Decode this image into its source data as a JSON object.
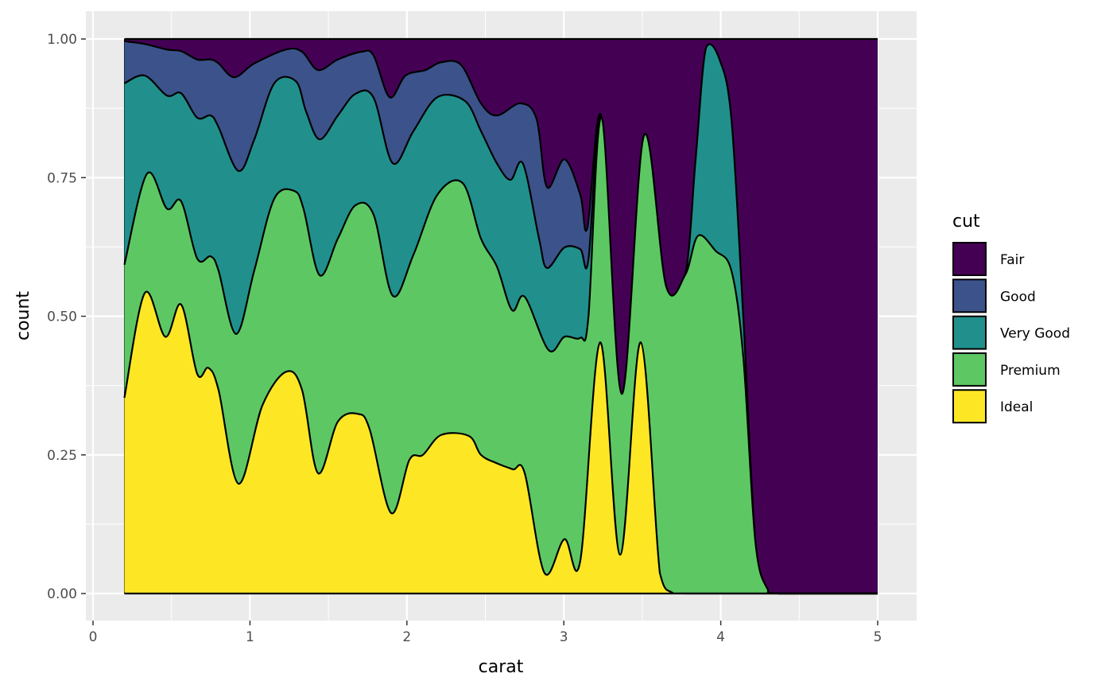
{
  "chart_data": {
    "type": "area",
    "stacking": "fill",
    "xlabel": "carat",
    "ylabel": "count",
    "xlim": [
      -0.05,
      5.2
    ],
    "ylim": [
      -0.05,
      1.05
    ],
    "x_ticks": [
      "0",
      "1",
      "2",
      "3",
      "4",
      "5"
    ],
    "y_ticks": [
      "0.00",
      "0.25",
      "0.50",
      "0.75",
      "1.00"
    ],
    "grid": true,
    "legend": {
      "title": "cut",
      "position": "right"
    },
    "x_range": [
      0.2,
      5.0
    ],
    "series": [
      {
        "name": "Fair",
        "color": "#440154",
        "upper": [
          [
            0.2,
            1
          ],
          [
            5,
            1
          ]
        ]
      },
      {
        "name": "Good",
        "color": "#3B528B",
        "upper": [
          [
            0.2,
            0.996
          ],
          [
            0.33,
            0.991
          ],
          [
            0.471,
            0.981
          ],
          [
            0.562,
            0.978
          ],
          [
            0.664,
            0.963
          ],
          [
            0.75,
            0.963
          ],
          [
            0.8,
            0.956
          ],
          [
            0.9,
            0.931
          ],
          [
            1.028,
            0.956
          ],
          [
            1.231,
            0.981
          ],
          [
            1.332,
            0.977
          ],
          [
            1.434,
            0.944
          ],
          [
            1.56,
            0.963
          ],
          [
            1.712,
            0.977
          ],
          [
            1.788,
            0.97
          ],
          [
            1.89,
            0.895
          ],
          [
            1.991,
            0.934
          ],
          [
            2.118,
            0.944
          ],
          [
            2.219,
            0.958
          ],
          [
            2.346,
            0.953
          ],
          [
            2.472,
            0.884
          ],
          [
            2.573,
            0.862
          ],
          [
            2.725,
            0.884
          ],
          [
            2.827,
            0.855
          ],
          [
            2.893,
            0.733
          ],
          [
            3.004,
            0.783
          ],
          [
            3.105,
            0.719
          ],
          [
            3.15,
            0.659
          ],
          [
            3.242,
            0.858
          ],
          [
            3.369,
            0.36
          ],
          [
            3.511,
            0.826
          ],
          [
            3.652,
            0.554
          ],
          [
            3.774,
            0.575
          ],
          [
            3.84,
            0.783
          ],
          [
            3.906,
            0.984
          ],
          [
            3.992,
            0.963
          ],
          [
            4.068,
            0.855
          ],
          [
            4.144,
            0.496
          ],
          [
            4.22,
            0.095
          ],
          [
            4.296,
            0.009
          ],
          [
            4.372,
            0
          ],
          [
            5,
            0
          ]
        ]
      },
      {
        "name": "Very Good",
        "color": "#21908C",
        "upper": [
          [
            0.2,
            0.92
          ],
          [
            0.33,
            0.934
          ],
          [
            0.471,
            0.898
          ],
          [
            0.562,
            0.902
          ],
          [
            0.664,
            0.858
          ],
          [
            0.75,
            0.862
          ],
          [
            0.8,
            0.841
          ],
          [
            0.927,
            0.762
          ],
          [
            1.028,
            0.819
          ],
          [
            1.155,
            0.92
          ],
          [
            1.292,
            0.924
          ],
          [
            1.358,
            0.869
          ],
          [
            1.444,
            0.819
          ],
          [
            1.56,
            0.862
          ],
          [
            1.672,
            0.901
          ],
          [
            1.788,
            0.894
          ],
          [
            1.91,
            0.776
          ],
          [
            2.042,
            0.834
          ],
          [
            2.194,
            0.895
          ],
          [
            2.371,
            0.888
          ],
          [
            2.472,
            0.834
          ],
          [
            2.573,
            0.776
          ],
          [
            2.66,
            0.746
          ],
          [
            2.74,
            0.775
          ],
          [
            2.842,
            0.64
          ],
          [
            2.893,
            0.587
          ],
          [
            3.004,
            0.624
          ],
          [
            3.105,
            0.621
          ],
          [
            3.156,
            0.6
          ],
          [
            3.242,
            0.858
          ],
          [
            3.369,
            0.36
          ],
          [
            3.511,
            0.826
          ],
          [
            3.652,
            0.554
          ],
          [
            3.774,
            0.575
          ],
          [
            3.84,
            0.783
          ],
          [
            3.906,
            0.984
          ],
          [
            3.992,
            0.963
          ],
          [
            4.068,
            0.855
          ],
          [
            4.144,
            0.496
          ],
          [
            4.22,
            0.095
          ],
          [
            4.296,
            0.009
          ],
          [
            4.372,
            0
          ],
          [
            5,
            0
          ]
        ]
      },
      {
        "name": "Premium",
        "color": "#5DC863",
        "upper": [
          [
            0.2,
            0.593
          ],
          [
            0.344,
            0.757
          ],
          [
            0.471,
            0.694
          ],
          [
            0.562,
            0.707
          ],
          [
            0.664,
            0.604
          ],
          [
            0.75,
            0.608
          ],
          [
            0.8,
            0.582
          ],
          [
            0.912,
            0.468
          ],
          [
            1.028,
            0.583
          ],
          [
            1.155,
            0.712
          ],
          [
            1.282,
            0.726
          ],
          [
            1.342,
            0.693
          ],
          [
            1.444,
            0.574
          ],
          [
            1.56,
            0.64
          ],
          [
            1.672,
            0.7
          ],
          [
            1.788,
            0.683
          ],
          [
            1.91,
            0.537
          ],
          [
            2.042,
            0.611
          ],
          [
            2.194,
            0.719
          ],
          [
            2.356,
            0.74
          ],
          [
            2.472,
            0.64
          ],
          [
            2.573,
            0.59
          ],
          [
            2.67,
            0.511
          ],
          [
            2.751,
            0.535
          ],
          [
            2.903,
            0.439
          ],
          [
            3.004,
            0.463
          ],
          [
            3.105,
            0.461
          ],
          [
            3.156,
            0.496
          ],
          [
            3.242,
            0.858
          ],
          [
            3.369,
            0.36
          ],
          [
            3.511,
            0.826
          ],
          [
            3.652,
            0.554
          ],
          [
            3.774,
            0.575
          ],
          [
            3.855,
            0.645
          ],
          [
            3.967,
            0.618
          ],
          [
            4.068,
            0.582
          ],
          [
            4.144,
            0.425
          ],
          [
            4.22,
            0.095
          ],
          [
            4.296,
            0.009
          ],
          [
            4.372,
            0
          ],
          [
            5,
            0
          ]
        ]
      },
      {
        "name": "Ideal",
        "color": "#FDE725",
        "upper": [
          [
            0.2,
            0.353
          ],
          [
            0.33,
            0.542
          ],
          [
            0.461,
            0.463
          ],
          [
            0.562,
            0.521
          ],
          [
            0.664,
            0.396
          ],
          [
            0.735,
            0.407
          ],
          [
            0.8,
            0.367
          ],
          [
            0.927,
            0.198
          ],
          [
            1.079,
            0.339
          ],
          [
            1.231,
            0.4
          ],
          [
            1.332,
            0.367
          ],
          [
            1.434,
            0.217
          ],
          [
            1.56,
            0.31
          ],
          [
            1.687,
            0.324
          ],
          [
            1.763,
            0.296
          ],
          [
            1.9,
            0.145
          ],
          [
            2.016,
            0.241
          ],
          [
            2.102,
            0.25
          ],
          [
            2.219,
            0.286
          ],
          [
            2.396,
            0.284
          ],
          [
            2.472,
            0.25
          ],
          [
            2.573,
            0.235
          ],
          [
            2.675,
            0.224
          ],
          [
            2.751,
            0.217
          ],
          [
            2.877,
            0.037
          ],
          [
            3.004,
            0.098
          ],
          [
            3.105,
            0.059
          ],
          [
            3.232,
            0.453
          ],
          [
            3.359,
            0.07
          ],
          [
            3.49,
            0.453
          ],
          [
            3.612,
            0.037
          ],
          [
            3.688,
            0.002
          ],
          [
            3.8,
            0
          ],
          [
            5,
            0
          ]
        ]
      }
    ]
  }
}
